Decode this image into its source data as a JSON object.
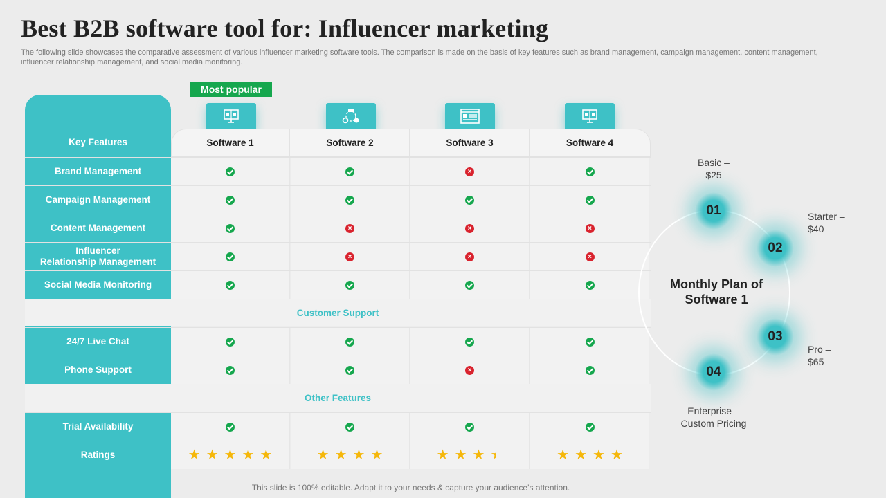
{
  "title": "Best B2B software tool for: Influencer marketing",
  "subtitle": "The following slide showcases the comparative assessment of various influencer marketing software tools. The comparison is made on the basis of key features such as brand management, campaign management, content management, influencer relationship management, and social media monitoring.",
  "badge": "Most popular",
  "table": {
    "header_label": "Key Features",
    "software": [
      "Software 1",
      "Software 2",
      "Software 3",
      "Software 4"
    ],
    "features": [
      {
        "name": "Brand Management",
        "values": [
          "check",
          "check",
          "cross",
          "check"
        ]
      },
      {
        "name": "Campaign Management",
        "values": [
          "check",
          "check",
          "check",
          "check"
        ]
      },
      {
        "name": "Content Management",
        "values": [
          "check",
          "cross",
          "cross",
          "cross"
        ]
      },
      {
        "name": "Influencer\nRelationship Management",
        "values": [
          "check",
          "cross",
          "cross",
          "cross"
        ]
      },
      {
        "name": "Social Media Monitoring",
        "values": [
          "check",
          "check",
          "check",
          "check"
        ]
      }
    ],
    "section_support": "Customer  Support",
    "support": [
      {
        "name": "24/7 Live Chat",
        "values": [
          "check",
          "check",
          "check",
          "check"
        ]
      },
      {
        "name": "Phone Support",
        "values": [
          "check",
          "check",
          "cross",
          "check"
        ]
      }
    ],
    "section_other": "Other Features",
    "other": [
      {
        "name": "Trial Availability",
        "values": [
          "check",
          "check",
          "check",
          "check"
        ]
      }
    ],
    "ratings_label": "Ratings",
    "ratings": [
      5,
      4,
      3.5,
      4
    ]
  },
  "plan": {
    "title": "Monthly Plan of Software 1",
    "items": [
      {
        "num": "01",
        "label": "Basic –\n$25"
      },
      {
        "num": "02",
        "label": "Starter –\n$40"
      },
      {
        "num": "03",
        "label": "Pro –\n$65"
      },
      {
        "num": "04",
        "label": "Enterprise –\nCustom Pricing"
      }
    ]
  },
  "footer": "This slide is 100% editable. Adapt it to your needs & capture your audience’s attention.",
  "colors": {
    "teal": "#3ec1c6",
    "green": "#16a74e",
    "red": "#d9232e",
    "star": "#f5b70a"
  }
}
